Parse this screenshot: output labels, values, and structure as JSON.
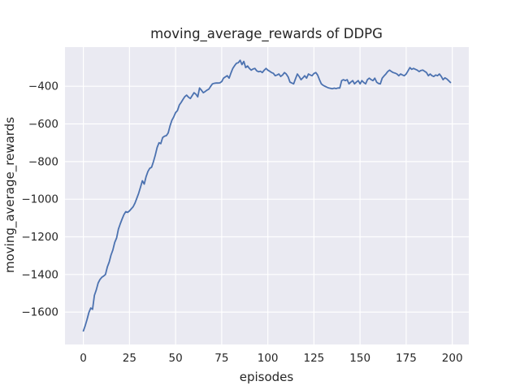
{
  "figure": {
    "background_color": "#ffffff",
    "axes_background_color": "#eaeaf2",
    "grid_color": "#ffffff",
    "text_color": "#262626"
  },
  "chart_data": {
    "type": "line",
    "title": "moving_average_rewards of DDPG",
    "xlabel": "episodes",
    "ylabel": "moving_average_rewards",
    "grid": true,
    "legend_position": "none",
    "line_color": "#4c72b0",
    "x_ticks": [
      0,
      25,
      50,
      75,
      100,
      125,
      150,
      175,
      200
    ],
    "y_ticks": [
      -400,
      -600,
      -800,
      -1000,
      -1200,
      -1400,
      -1600
    ],
    "xlim": [
      -9.95,
      208.95
    ],
    "ylim": [
      -1772,
      -192
    ],
    "series": [
      {
        "name": "moving_average_rewards",
        "x_start": 0,
        "x_step": 1,
        "values": [
          -1700,
          -1672,
          -1640,
          -1602,
          -1578,
          -1585,
          -1511,
          -1482,
          -1445,
          -1427,
          -1415,
          -1408,
          -1400,
          -1360,
          -1334,
          -1297,
          -1270,
          -1230,
          -1206,
          -1160,
          -1131,
          -1105,
          -1082,
          -1066,
          -1070,
          -1062,
          -1051,
          -1040,
          -1020,
          -995,
          -968,
          -935,
          -902,
          -920,
          -880,
          -852,
          -836,
          -830,
          -800,
          -766,
          -725,
          -700,
          -705,
          -672,
          -665,
          -662,
          -648,
          -610,
          -580,
          -563,
          -540,
          -529,
          -500,
          -486,
          -470,
          -455,
          -447,
          -458,
          -465,
          -450,
          -434,
          -442,
          -456,
          -409,
          -421,
          -434,
          -428,
          -421,
          -415,
          -400,
          -387,
          -384,
          -383,
          -383,
          -382,
          -375,
          -357,
          -350,
          -344,
          -357,
          -330,
          -305,
          -290,
          -278,
          -275,
          -262,
          -285,
          -268,
          -301,
          -292,
          -305,
          -314,
          -308,
          -305,
          -318,
          -323,
          -320,
          -327,
          -315,
          -305,
          -314,
          -320,
          -327,
          -331,
          -344,
          -340,
          -335,
          -348,
          -340,
          -327,
          -335,
          -350,
          -378,
          -383,
          -387,
          -360,
          -335,
          -348,
          -365,
          -355,
          -344,
          -357,
          -335,
          -340,
          -344,
          -332,
          -327,
          -340,
          -365,
          -387,
          -395,
          -400,
          -405,
          -409,
          -411,
          -413,
          -410,
          -412,
          -409,
          -409,
          -370,
          -365,
          -370,
          -365,
          -387,
          -378,
          -370,
          -387,
          -378,
          -370,
          -387,
          -370,
          -380,
          -387,
          -365,
          -357,
          -365,
          -370,
          -357,
          -378,
          -385,
          -387,
          -357,
          -345,
          -335,
          -322,
          -314,
          -322,
          -327,
          -330,
          -335,
          -344,
          -335,
          -340,
          -344,
          -335,
          -318,
          -301,
          -310,
          -305,
          -310,
          -314,
          -322,
          -316,
          -314,
          -320,
          -327,
          -344,
          -335,
          -344,
          -348,
          -340,
          -344,
          -335,
          -348,
          -365,
          -355,
          -361,
          -370,
          -380
        ]
      }
    ]
  }
}
